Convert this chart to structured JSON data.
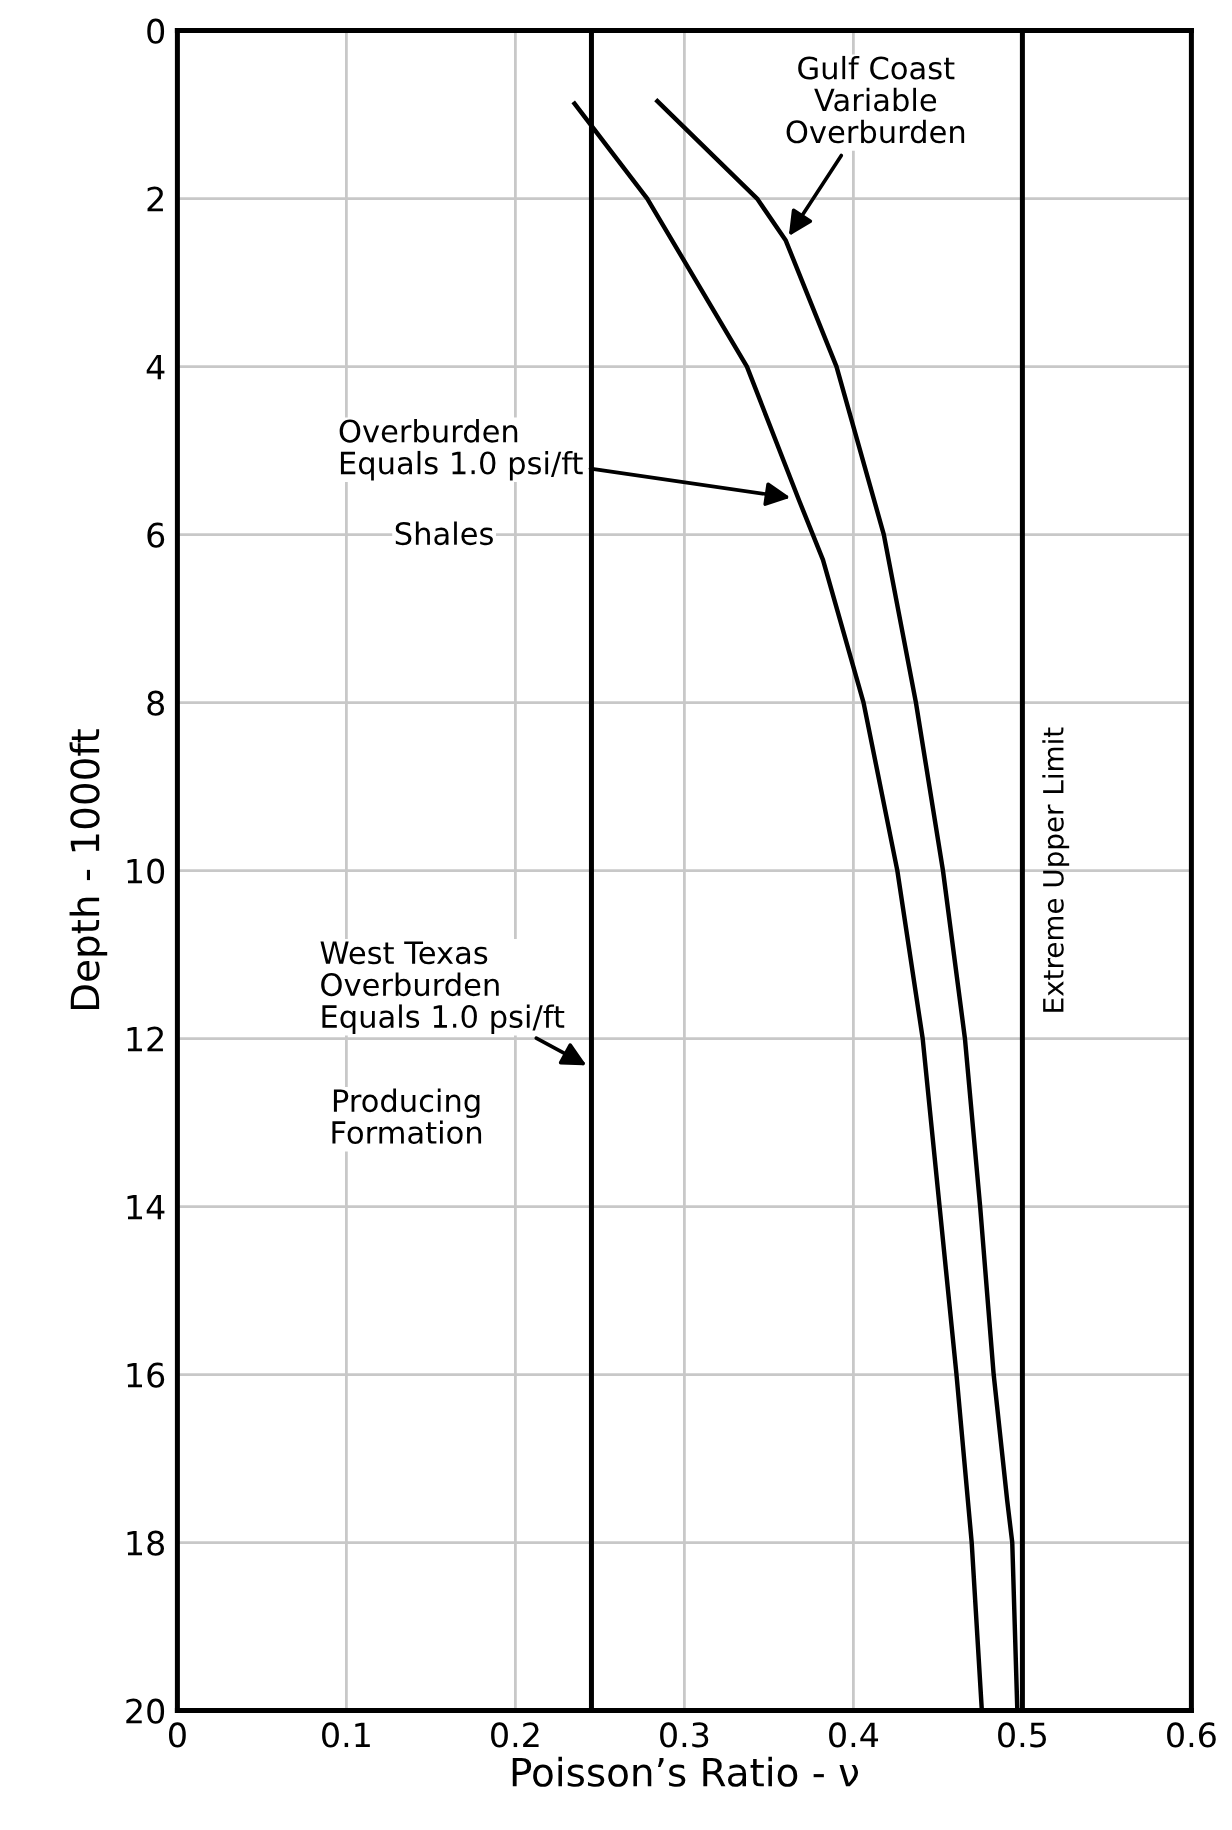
{
  "chart_data": {
    "type": "line",
    "xlabel": "Poisson’s Ratio - ν",
    "ylabel": "Depth - 1000ft",
    "xlim": [
      0,
      0.6
    ],
    "xticks": [
      0,
      0.1,
      0.2,
      0.3,
      0.4,
      0.5,
      0.6
    ],
    "ylim": [
      20,
      0
    ],
    "yticks": [
      0,
      2,
      4,
      6,
      8,
      10,
      12,
      14,
      16,
      18,
      20
    ],
    "grid": true,
    "marker": "none",
    "line_style": "solid",
    "series": [
      {
        "color": "#000000",
        "x": [
          0.235,
          0.278,
          0.337,
          0.368,
          0.382,
          0.406,
          0.426,
          0.441,
          0.451,
          0.461,
          0.47,
          0.476
        ],
        "values": [
          0.87,
          2,
          4,
          5.6,
          6.3,
          8,
          10,
          12,
          14,
          16,
          18,
          20
        ]
      },
      {
        "color": "#000000",
        "x": [
          0.284,
          0.343,
          0.36,
          0.37,
          0.39,
          0.418,
          0.437,
          0.453,
          0.466,
          0.475,
          0.483,
          0.491,
          0.494,
          0.497
        ],
        "values": [
          0.84,
          2,
          2.5,
          3,
          4,
          6,
          8,
          10,
          12,
          14,
          16,
          17.5,
          18,
          20
        ]
      }
    ],
    "ref_lines": [
      {
        "axis": "x",
        "value": 0.245,
        "color": "#000000"
      },
      {
        "axis": "x",
        "value": 0.5,
        "label": "Extreme Upper Limit",
        "color": "#000000"
      }
    ],
    "annotations": [
      {
        "text": "Gulf Coast\nVariable\nOverburden",
        "x": 0.36,
        "y": 2.5
      },
      {
        "text": "Overburden\nEquals 1.0 psi/ft",
        "x": 0.366,
        "y": 5.57
      },
      "Shales",
      {
        "text": "West Texas\nOverburden\nEquals 1.0 psi/ft",
        "x": 0.245,
        "y": 12.35
      },
      "Producing\nFormation"
    ]
  }
}
